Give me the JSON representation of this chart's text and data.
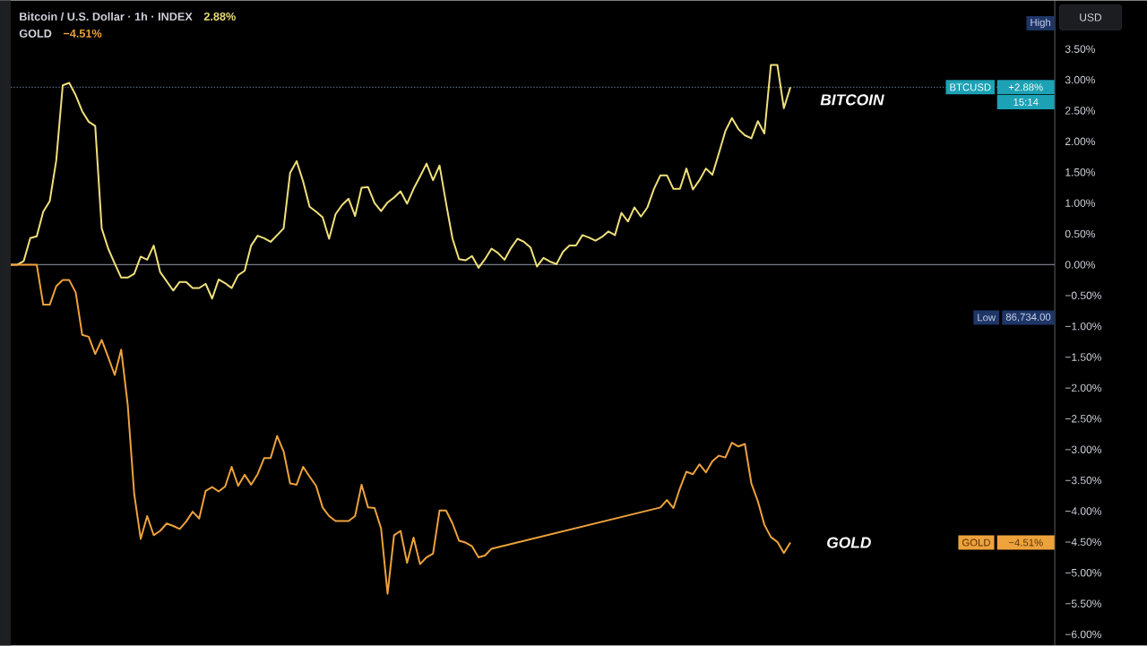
{
  "chart_data": {
    "type": "line",
    "title": "Bitcoin / U.S. Dollar · 1h · INDEX",
    "subtitle": "GOLD",
    "categories": [
      null,
      null,
      null,
      null,
      null,
      null,
      null,
      null,
      null,
      null,
      null,
      null,
      null,
      null,
      null,
      null,
      null,
      null,
      null,
      null,
      null,
      null,
      null,
      null,
      null,
      null,
      null,
      null,
      null,
      null,
      null,
      null,
      null,
      null,
      null,
      null,
      null,
      null,
      null,
      null,
      null,
      null,
      null,
      null,
      null,
      null,
      null,
      null,
      null,
      null,
      null,
      null,
      null,
      null,
      null,
      null,
      null,
      null,
      null,
      null,
      null,
      null,
      null,
      null,
      null,
      null,
      null,
      null,
      null,
      null,
      null,
      null,
      null,
      null,
      null,
      null,
      null,
      null,
      null,
      null,
      null,
      null,
      null,
      null,
      null,
      null,
      null,
      null,
      null,
      null,
      null,
      null,
      null,
      null,
      null,
      null,
      null,
      null,
      null,
      null,
      null,
      null,
      null,
      null,
      null,
      null,
      null,
      null,
      null,
      null,
      null,
      null,
      null,
      null,
      null,
      null,
      null,
      null,
      null,
      null,
      null
    ],
    "series": [
      {
        "name": "BITCOIN",
        "color": "#efe07a",
        "values": [
          0.0,
          0.0,
          0.06,
          0.43,
          0.46,
          0.86,
          1.03,
          1.69,
          2.91,
          2.95,
          2.75,
          2.49,
          2.32,
          2.25,
          0.59,
          0.26,
          0.02,
          -0.21,
          -0.21,
          -0.15,
          0.13,
          0.08,
          0.31,
          -0.12,
          -0.27,
          -0.42,
          -0.28,
          -0.28,
          -0.38,
          -0.38,
          -0.31,
          -0.55,
          -0.24,
          -0.3,
          -0.38,
          -0.17,
          -0.1,
          0.31,
          0.47,
          0.43,
          0.37,
          0.48,
          0.59,
          1.49,
          1.68,
          1.35,
          0.94,
          0.86,
          0.77,
          0.42,
          0.82,
          0.97,
          1.07,
          0.79,
          1.25,
          1.26,
          1.0,
          0.87,
          1.01,
          1.09,
          1.19,
          0.99,
          1.23,
          1.43,
          1.64,
          1.37,
          1.61,
          1.0,
          0.42,
          0.09,
          0.07,
          0.14,
          -0.05,
          0.09,
          0.26,
          0.19,
          0.08,
          0.27,
          0.42,
          0.37,
          0.28,
          -0.03,
          0.11,
          0.05,
          0.01,
          0.21,
          0.31,
          0.31,
          0.48,
          0.44,
          0.39,
          0.45,
          0.54,
          0.48,
          0.84,
          0.7,
          0.93,
          0.78,
          0.93,
          1.23,
          1.45,
          1.45,
          1.23,
          1.23,
          1.56,
          1.22,
          1.37,
          1.56,
          1.46,
          1.81,
          2.17,
          2.38,
          2.2,
          2.1,
          2.05,
          2.33,
          2.13,
          3.24,
          3.24,
          2.54,
          2.88
        ]
      },
      {
        "name": "GOLD",
        "color": "#eda23c",
        "values": [
          0,
          0,
          0,
          0,
          0,
          -0.65,
          -0.65,
          -0.35,
          -0.25,
          -0.25,
          -0.45,
          -1.14,
          -1.17,
          -1.45,
          -1.22,
          -1.5,
          -1.79,
          -1.38,
          -2.27,
          -3.72,
          -4.45,
          -4.08,
          -4.39,
          -4.32,
          -4.2,
          -4.24,
          -4.29,
          -4.17,
          -4.01,
          -4.12,
          -3.67,
          -3.61,
          -3.68,
          -3.6,
          -3.28,
          -3.59,
          -3.41,
          -3.57,
          -3.4,
          -3.14,
          -3.14,
          -2.78,
          -3.03,
          -3.55,
          -3.57,
          -3.28,
          -3.44,
          -3.59,
          -3.94,
          -4.08,
          -4.16,
          -4.16,
          -4.16,
          -4.08,
          -3.57,
          -3.94,
          -3.95,
          -4.28,
          -5.34,
          -4.39,
          -4.32,
          -4.84,
          -4.43,
          -4.86,
          -4.75,
          -4.69,
          -3.99,
          -3.99,
          -4.2,
          -4.48,
          -4.51,
          -4.57,
          -4.75,
          -4.72,
          -4.61,
          null,
          null,
          null,
          null,
          null,
          null,
          null,
          null,
          null,
          null,
          null,
          null,
          null,
          null,
          null,
          null,
          null,
          null,
          null,
          null,
          null,
          null,
          null,
          null,
          null,
          -3.94,
          -3.82,
          -3.95,
          -3.63,
          -3.36,
          -3.4,
          -3.24,
          -3.37,
          -3.19,
          -3.1,
          -3.13,
          -2.89,
          -2.95,
          -2.91,
          -3.55,
          -3.84,
          -4.22,
          -4.42,
          -4.5,
          -4.68,
          -4.51
        ]
      }
    ],
    "ylim": [
      -6.18,
      4.29
    ],
    "yticks": [
      {
        "value": 3.5,
        "label": "3.50%"
      },
      {
        "value": 3,
        "label": "3.00%"
      },
      {
        "value": 2.5,
        "label": "2.50%"
      },
      {
        "value": 2,
        "label": "2.00%"
      },
      {
        "value": 1.5,
        "label": "1.50%"
      },
      {
        "value": 1,
        "label": "1.00%"
      },
      {
        "value": 0.5,
        "label": "0.50%"
      },
      {
        "value": 0,
        "label": "0.00%"
      },
      {
        "value": -0.5,
        "label": "−0.50%"
      },
      {
        "value": -1,
        "label": "−1.00%"
      },
      {
        "value": -1.5,
        "label": "−1.50%"
      },
      {
        "value": -2,
        "label": "−2.00%"
      },
      {
        "value": -2.5,
        "label": "−2.50%"
      },
      {
        "value": -3,
        "label": "−3.00%"
      },
      {
        "value": -3.5,
        "label": "−3.50%"
      },
      {
        "value": -4,
        "label": "−4.00%"
      },
      {
        "value": -4.5,
        "label": "−4.50%"
      },
      {
        "value": -5,
        "label": "−5.00%"
      },
      {
        "value": -5.5,
        "label": "−5.50%"
      },
      {
        "value": -6,
        "label": "−6.00%"
      }
    ],
    "tick_labels": "y",
    "ref_lines": [
      {
        "axis": "y",
        "value": 0,
        "color": "#787b86",
        "line_style": "solid"
      },
      {
        "axis": "y",
        "value": 2.88,
        "label": "BTCUSD",
        "color": "#5b6f86",
        "line_style": "dotted"
      }
    ],
    "annotations": [
      "2.88%",
      "−4.51%",
      "USD",
      "High",
      "+2.88%",
      "15:14",
      "Low",
      "86,734.00",
      "GOLD",
      "−4.51%"
    ]
  }
}
